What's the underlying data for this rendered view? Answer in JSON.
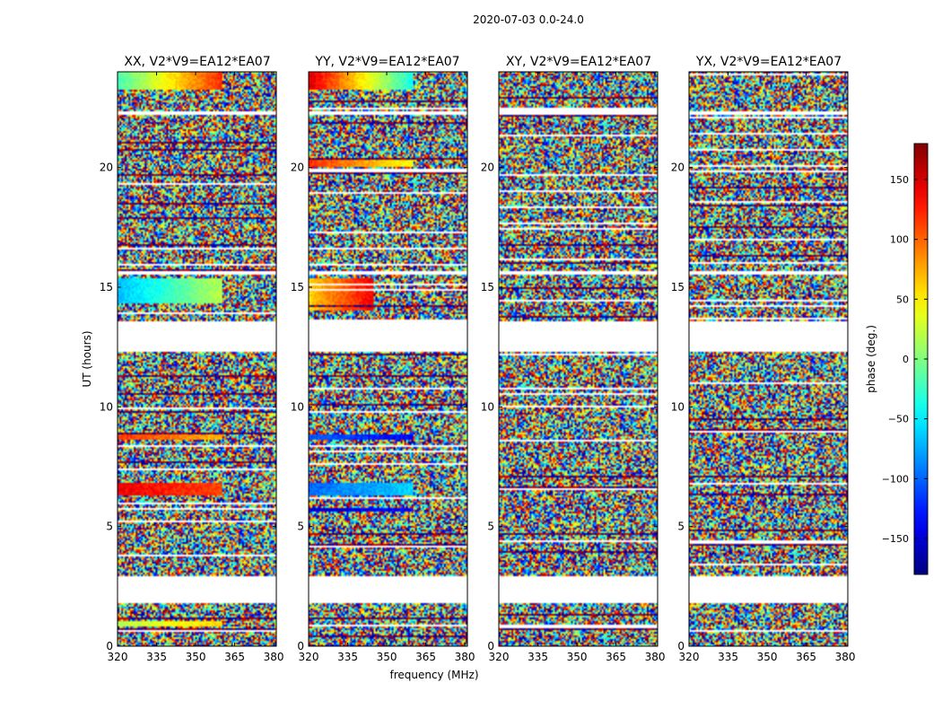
{
  "chart_data": {
    "type": "heatmap",
    "suptitle": "2020-07-03 0.0-24.0",
    "xlabel": "frequency (MHz)",
    "ylabel": "UT (hours)",
    "xlim": [
      320,
      381
    ],
    "ylim": [
      0,
      24
    ],
    "xticks": [
      320,
      335,
      350,
      365,
      380
    ],
    "xtick_labels": [
      "320",
      "335",
      "350",
      "365",
      "380"
    ],
    "yticks": [
      0,
      5,
      10,
      15,
      20
    ],
    "ytick_labels": [
      "0",
      "5",
      "10",
      "15",
      "20"
    ],
    "panels": [
      {
        "title": "XX, V2*V9=EA12*EA07",
        "coherent_bands": [
          {
            "t0": 23.25,
            "t1": 24.0,
            "phase_start": -20,
            "phase_end": 120,
            "f_end": 360
          },
          {
            "t0": 14.3,
            "t1": 15.4,
            "phase_start": -70,
            "phase_end": 20,
            "f_end": 360
          },
          {
            "t0": 8.6,
            "t1": 8.85,
            "phase_start": 120,
            "phase_end": 70,
            "f_end": 360
          },
          {
            "t0": 6.3,
            "t1": 6.8,
            "phase_start": 140,
            "phase_end": 110,
            "f_end": 360
          },
          {
            "t0": 0.85,
            "t1": 1.05,
            "phase_start": 20,
            "phase_end": 60,
            "f_end": 360
          }
        ]
      },
      {
        "title": "YY, V2*V9=EA12*EA07",
        "coherent_bands": [
          {
            "t0": 23.25,
            "t1": 24.0,
            "phase_start": 150,
            "phase_end": -40,
            "f_end": 360
          },
          {
            "t0": 20.0,
            "t1": 20.35,
            "phase_start": 120,
            "phase_end": 40,
            "f_end": 360
          },
          {
            "t0": 14.0,
            "t1": 15.4,
            "phase_start": 60,
            "phase_end": 140,
            "f_end": 345
          },
          {
            "t0": 8.6,
            "t1": 8.85,
            "phase_start": -100,
            "phase_end": -140,
            "f_end": 360
          },
          {
            "t0": 6.3,
            "t1": 6.8,
            "phase_start": -100,
            "phase_end": -60,
            "f_end": 360
          },
          {
            "t0": 5.6,
            "t1": 5.8,
            "phase_start": -150,
            "phase_end": -130,
            "f_end": 360
          }
        ]
      },
      {
        "title": "XY, V2*V9=EA12*EA07",
        "coherent_bands": []
      },
      {
        "title": "YX, V2*V9=EA12*EA07",
        "coherent_bands": []
      }
    ],
    "gaps_hours": [
      [
        12.3,
        13.6
      ],
      [
        1.8,
        2.9
      ],
      [
        15.5,
        15.7
      ],
      [
        22.2,
        22.35
      ]
    ],
    "colorbar": {
      "label": "phase (deg.)",
      "range": [
        -180,
        180
      ],
      "ticks": [
        150,
        100,
        50,
        0,
        -50,
        -100,
        -150
      ],
      "tick_labels": [
        "150",
        "100",
        "50",
        "0",
        "−50",
        "−100",
        "−150"
      ],
      "colormap": "jet"
    }
  }
}
